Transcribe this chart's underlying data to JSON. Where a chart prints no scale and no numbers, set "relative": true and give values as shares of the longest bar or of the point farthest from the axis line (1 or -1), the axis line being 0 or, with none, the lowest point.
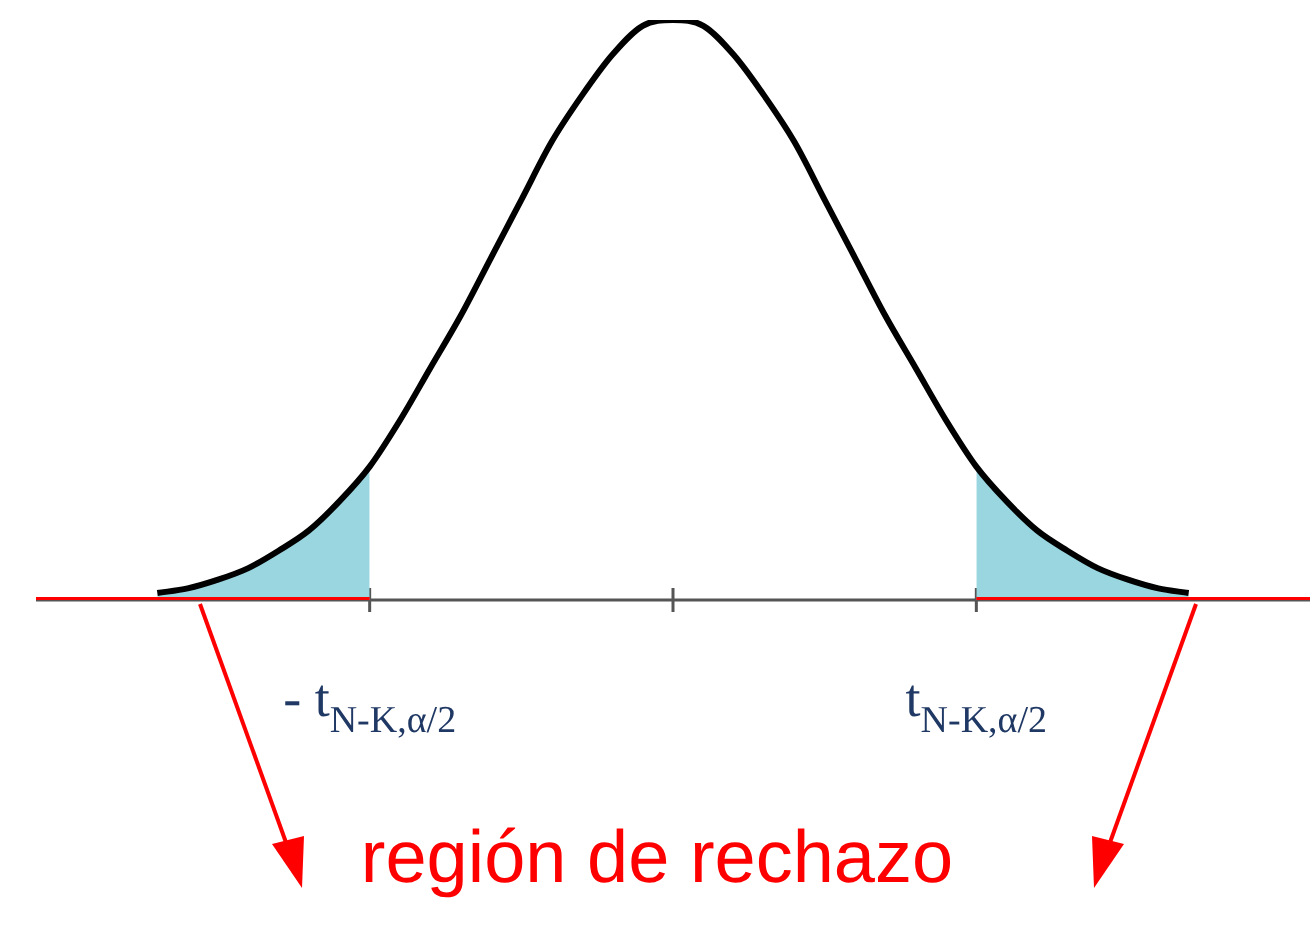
{
  "chart_data": {
    "type": "line",
    "relative": true,
    "marker": "none",
    "legend": false,
    "categories": [
      null,
      null,
      null,
      null,
      null,
      null,
      null,
      null,
      null,
      null,
      null,
      "- t$_{N-K,α/2}$",
      null,
      null,
      null,
      null,
      null,
      null,
      null,
      null,
      null,
      null,
      null,
      null,
      null,
      null,
      null,
      null,
      null,
      null,
      null,
      "t$_{N-K,α/2}$",
      null,
      null,
      null,
      null,
      null,
      null,
      null,
      null,
      null,
      null,
      null
    ],
    "series": [
      {
        "type": "area",
        "color": "#99d6e0",
        "values": [
          null,
          null,
          null,
          null,
          0.012,
          0.02,
          0.035,
          0.055,
          0.085,
          0.12,
          0.17,
          0.23,
          null,
          null,
          null,
          null,
          null,
          null,
          null,
          null,
          null,
          null,
          null,
          null,
          null,
          null,
          null,
          null,
          null,
          null,
          null,
          0.23,
          0.17,
          0.12,
          0.085,
          0.055,
          0.035,
          0.02,
          0.012,
          null,
          null,
          null,
          null
        ]
      },
      {
        "color": "#000000",
        "values": [
          null,
          null,
          null,
          null,
          0.012,
          0.02,
          0.035,
          0.055,
          0.085,
          0.12,
          0.17,
          0.23,
          0.31,
          0.4,
          0.49,
          0.59,
          0.69,
          0.79,
          0.87,
          0.94,
          0.99,
          1,
          0.99,
          0.94,
          0.87,
          0.79,
          0.69,
          0.59,
          0.49,
          0.4,
          0.31,
          0.23,
          0.17,
          0.12,
          0.085,
          0.055,
          0.035,
          0.02,
          0.012,
          null,
          null,
          null,
          null
        ]
      },
      {
        "color": "#ff0000",
        "values": [
          0,
          0,
          0,
          0,
          0,
          0,
          0,
          0,
          0,
          0,
          0,
          0,
          null,
          null,
          null,
          null,
          null,
          null,
          null,
          null,
          null,
          null,
          null,
          null,
          null,
          null,
          null,
          null,
          null,
          null,
          null,
          0,
          0,
          0,
          0,
          0,
          0,
          0,
          0,
          0,
          0,
          0,
          0
        ]
      }
    ],
    "annotations": [
      "región de rechazo"
    ]
  }
}
